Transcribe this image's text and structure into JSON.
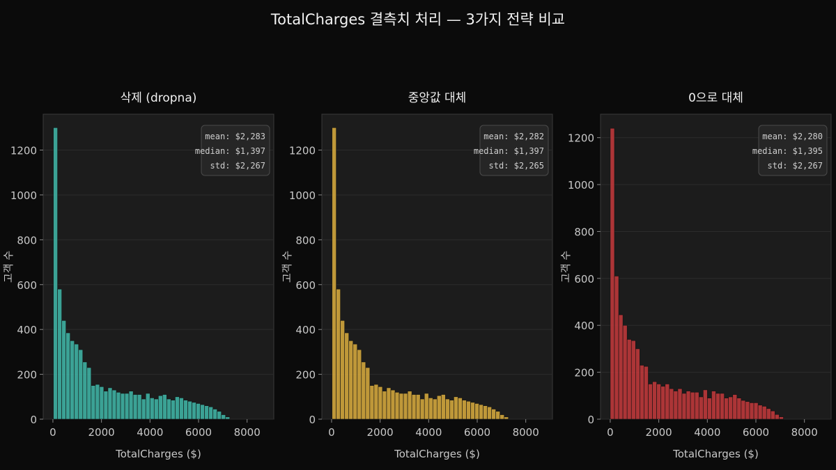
{
  "figure": {
    "title": "TotalCharges 결측치 처리 — 3가지 전략 비교"
  },
  "chart_data": [
    {
      "type": "bar",
      "title": "삭제 (dropna)",
      "xlabel": "TotalCharges ($)",
      "ylabel": "고객 수",
      "xlim": [
        -400,
        9100
      ],
      "ylim": [
        0,
        1360
      ],
      "xticks": [
        0,
        2000,
        4000,
        6000,
        8000
      ],
      "yticks": [
        0,
        200,
        400,
        600,
        800,
        1000,
        1200
      ],
      "bar_color": "#40b5a6",
      "bin_start": 19,
      "bin_width": 173,
      "values": [
        1300,
        580,
        440,
        385,
        350,
        335,
        310,
        255,
        230,
        150,
        155,
        145,
        125,
        140,
        130,
        120,
        115,
        115,
        125,
        110,
        110,
        90,
        115,
        95,
        90,
        105,
        110,
        90,
        85,
        100,
        95,
        85,
        80,
        75,
        70,
        65,
        60,
        55,
        45,
        35,
        20,
        10
      ],
      "stats": [
        "mean: $2,283",
        "median: $1,397",
        "std: $2,267"
      ],
      "grid": true
    },
    {
      "type": "bar",
      "title": "중앙값 대체",
      "xlabel": "TotalCharges ($)",
      "ylabel": "고객 수",
      "xlim": [
        -400,
        9100
      ],
      "ylim": [
        0,
        1360
      ],
      "xticks": [
        0,
        2000,
        4000,
        6000,
        8000
      ],
      "yticks": [
        0,
        200,
        400,
        600,
        800,
        1000,
        1200
      ],
      "bar_color": "#d6aa3d",
      "bin_start": 19,
      "bin_width": 173,
      "values": [
        1300,
        580,
        440,
        385,
        350,
        335,
        310,
        255,
        230,
        150,
        155,
        145,
        125,
        140,
        130,
        120,
        115,
        115,
        125,
        110,
        110,
        90,
        115,
        95,
        90,
        105,
        110,
        90,
        85,
        100,
        95,
        85,
        80,
        75,
        70,
        65,
        60,
        55,
        45,
        35,
        20,
        10
      ],
      "stats": [
        "mean: $2,282",
        "median: $1,397",
        "std: $2,265"
      ],
      "grid": true
    },
    {
      "type": "bar",
      "title": "0으로 대체",
      "xlabel": "TotalCharges ($)",
      "ylabel": "고객 수",
      "xlim": [
        -400,
        9100
      ],
      "ylim": [
        0,
        1300
      ],
      "xticks": [
        0,
        2000,
        4000,
        6000,
        8000
      ],
      "yticks": [
        0,
        200,
        400,
        600,
        800,
        1000,
        1200
      ],
      "bar_color": "#c0393b",
      "bin_start": 0,
      "bin_width": 174,
      "values": [
        1240,
        610,
        445,
        400,
        340,
        335,
        300,
        230,
        225,
        150,
        160,
        150,
        140,
        150,
        130,
        120,
        130,
        110,
        120,
        115,
        115,
        95,
        125,
        90,
        120,
        110,
        110,
        90,
        95,
        105,
        90,
        80,
        75,
        70,
        70,
        60,
        55,
        45,
        35,
        20,
        10
      ],
      "stats": [
        "mean: $2,280",
        "median: $1,395",
        "std: $2,267"
      ],
      "grid": true
    }
  ]
}
